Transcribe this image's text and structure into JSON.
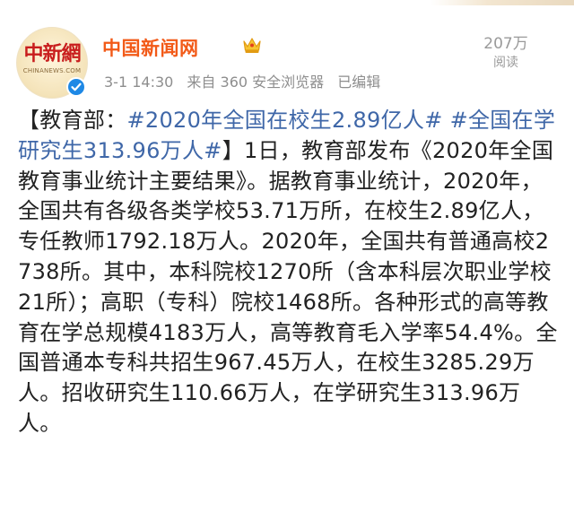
{
  "account": {
    "name": "中国新闻网",
    "avatar_logo_text": "中新網",
    "avatar_sub_text": "CHINANEWS.COM",
    "time": "3-1 14:30",
    "source": "来自 360 安全浏览器",
    "edited": "已编辑"
  },
  "views": {
    "count": "207万",
    "label": "阅读"
  },
  "post": {
    "prefix": "【教育部：",
    "tag1": "#2020年全国在校生2.89亿人#",
    "tag2": "#全国在学研究生313.96万人#",
    "suffix": "】1日，教育部发布《2020年全国教育事业统计主要结果》。据教育事业统计，2020年，全国共有各级各类学校53.71万所，在校生2.89亿人，专任教师1792.18万人。2020年，全国共有普通高校2738所。其中，本科院校1270所（含本科层次职业学校21所）；高职（专科）院校1468所。各种形式的高等教育在学总规模4183万人，高等教育毛入学率54.4%。全国普通本专科共招生967.45万人，在校生3285.29万人。招收研究生110.66万人，在学研究生313.96万人。"
  },
  "colors": {
    "name": "#f25a18",
    "hashtag": "#3f67a8",
    "meta": "#8e8e8e",
    "verified": "#1e88e5"
  },
  "icons": {
    "verified": "verified-badge-icon",
    "crown": "crown-icon"
  }
}
